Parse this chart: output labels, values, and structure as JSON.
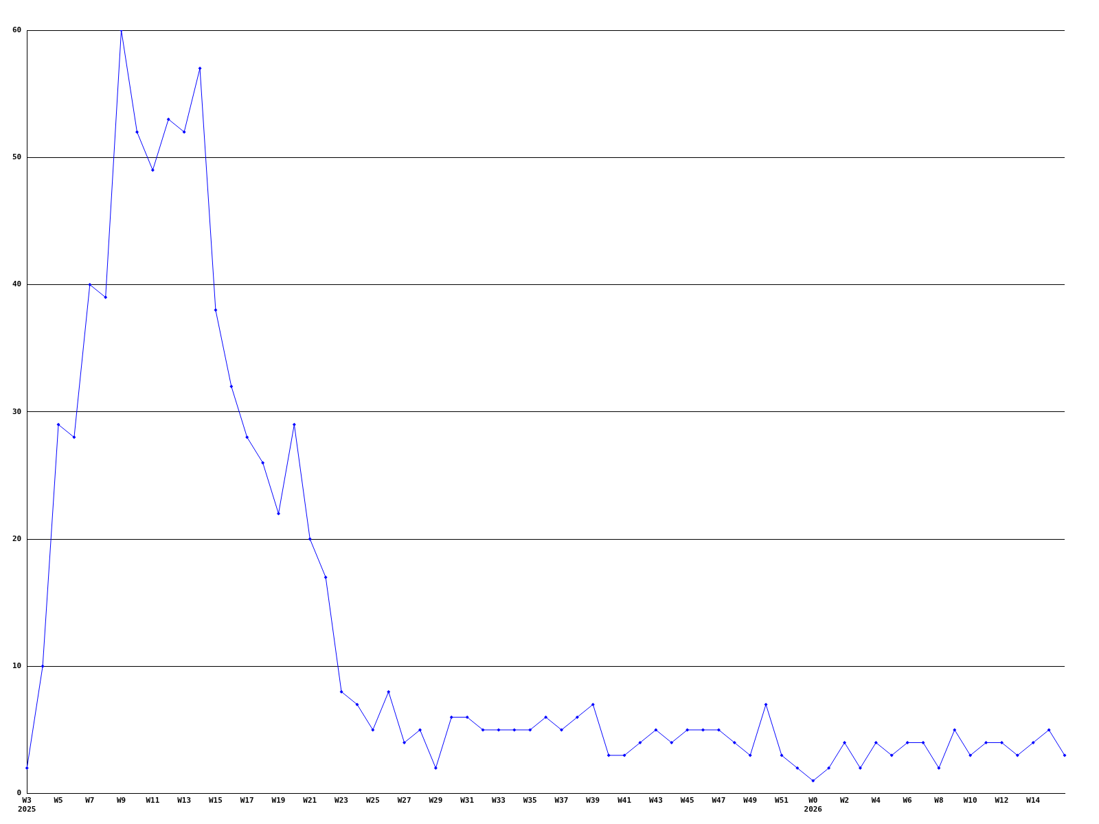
{
  "chart_data": {
    "type": "line",
    "categories": [
      "W3\n2025",
      null,
      "W5",
      null,
      "W7",
      null,
      "W9",
      null,
      "W11",
      null,
      "W13",
      null,
      "W15",
      null,
      "W17",
      null,
      "W19",
      null,
      "W21",
      null,
      "W23",
      null,
      "W25",
      null,
      "W27",
      null,
      "W29",
      null,
      "W31",
      null,
      "W33",
      null,
      "W35",
      null,
      "W37",
      null,
      "W39",
      null,
      "W41",
      null,
      "W43",
      null,
      "W45",
      null,
      "W47",
      null,
      "W49",
      null,
      "W51",
      null,
      "W0\n2026",
      null,
      "W2",
      null,
      "W4",
      null,
      "W6",
      null,
      "W8",
      null,
      "W10",
      null,
      "W12",
      null,
      "W14",
      null,
      null
    ],
    "series": [
      {
        "color": "#0000ff",
        "values": [
          2,
          10,
          29,
          28,
          40,
          39,
          60,
          52,
          49,
          53,
          52,
          57,
          38,
          32,
          28,
          26,
          22,
          29,
          20,
          17,
          8,
          7,
          5,
          8,
          4,
          5,
          2,
          6,
          6,
          5,
          5,
          5,
          5,
          6,
          5,
          6,
          7,
          3,
          3,
          4,
          5,
          4,
          5,
          5,
          5,
          4,
          3,
          7,
          3,
          2,
          1,
          2,
          4,
          2,
          4,
          3,
          4,
          4,
          2,
          5,
          3,
          4,
          4,
          3,
          4,
          5,
          3
        ]
      }
    ],
    "ylim": [
      0,
      60
    ],
    "yticks": [
      0,
      10,
      20,
      30,
      40,
      50,
      60
    ],
    "grid": "y",
    "legend": false,
    "marker": "diamond",
    "line_style": "solid"
  }
}
